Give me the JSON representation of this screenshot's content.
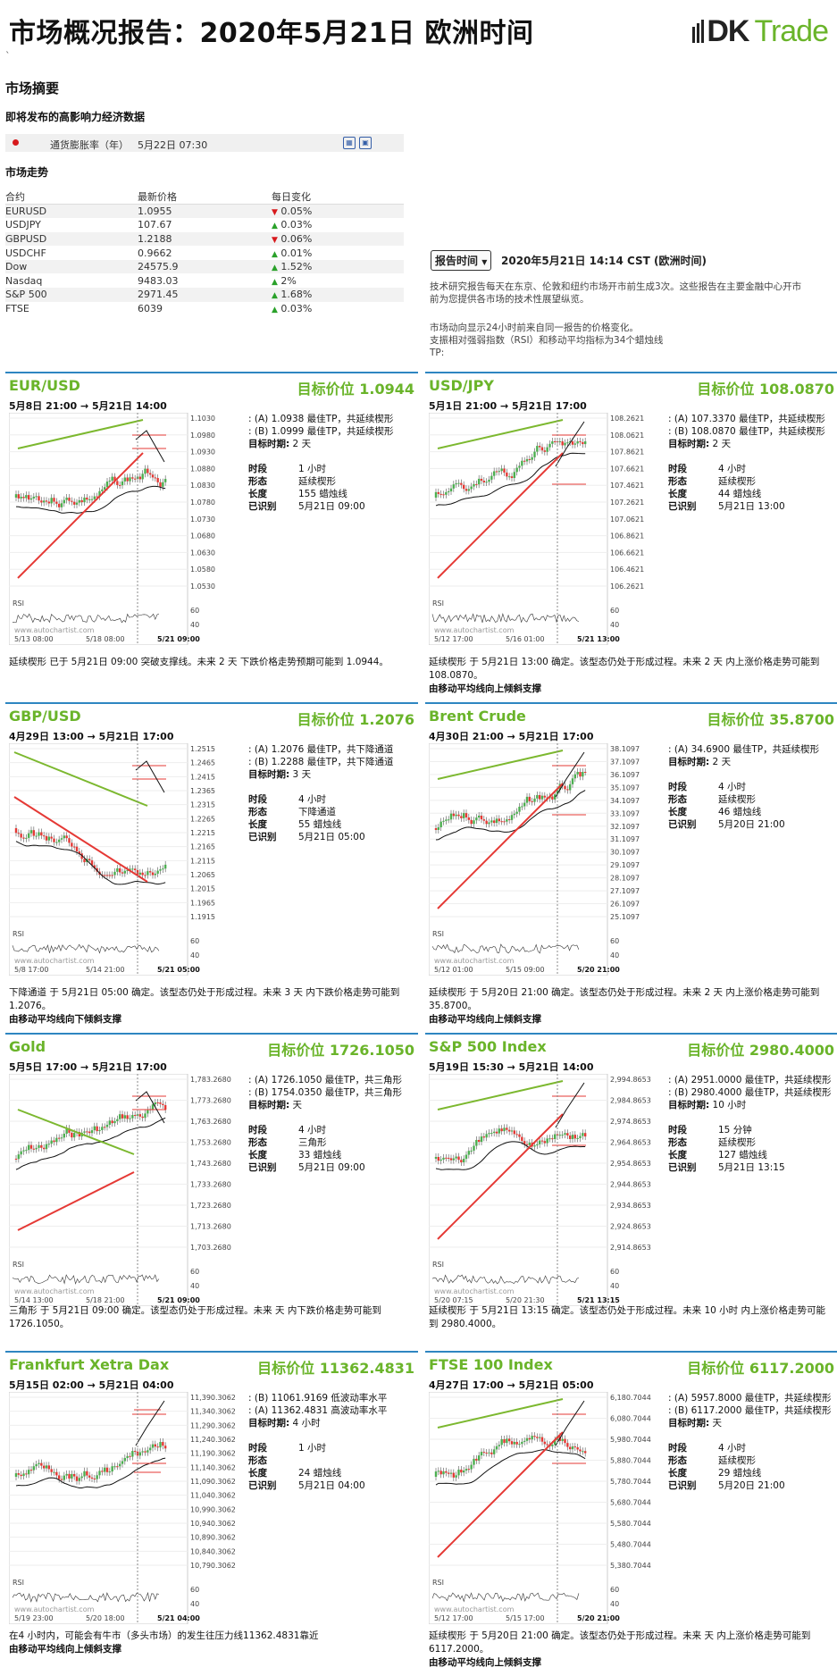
{
  "header": {
    "title": "市场概况报告：2020年5月21日 欧洲时间",
    "tick": "`",
    "logo_main": "DK",
    "logo_trade": "Trade"
  },
  "summary": {
    "title": "市场摘要",
    "eco_title": "即将发布的高影响力经济数据",
    "eco_name": "通货膨胀率（年）",
    "eco_time": "5月22日 07:30"
  },
  "market": {
    "title": "市场走势",
    "headers": [
      "合约",
      "最新价格",
      "每日变化"
    ],
    "rows": [
      {
        "name": "EURUSD",
        "price": "1.0955",
        "change": "0.05%",
        "dir": "down"
      },
      {
        "name": "USDJPY",
        "price": "107.67",
        "change": "0.03%",
        "dir": "up"
      },
      {
        "name": "GBPUSD",
        "price": "1.2188",
        "change": "0.06%",
        "dir": "down"
      },
      {
        "name": "USDCHF",
        "price": "0.9662",
        "change": "0.01%",
        "dir": "up"
      },
      {
        "name": "Dow",
        "price": "24575.9",
        "change": "1.52%",
        "dir": "up"
      },
      {
        "name": "Nasdaq",
        "price": "9483.03",
        "change": "2%",
        "dir": "up"
      },
      {
        "name": "S&P 500",
        "price": "2971.45",
        "change": "1.68%",
        "dir": "up"
      },
      {
        "name": "FTSE",
        "price": "6039",
        "change": "0.03%",
        "dir": "up"
      }
    ]
  },
  "report": {
    "select": "报告时间",
    "date": "2020年5月21日 14:14 CST (欧洲时间)",
    "p1a": "技术研究报告每天在东京、伦敦和纽约市场开市前生成3次。这些报告在主要金融中心开市",
    "p1b": "前为您提供各市场的技术性展望纵览。",
    "p2a": "市场动向显示24小时前来自同一报告的价格变化。",
    "p2b": "支振相对强弱指数（RSI）和移动平均指标为34个蜡烛线",
    "p2c": "TP:"
  },
  "labels": {
    "period": "时段",
    "pattern": "形态",
    "length": "长度",
    "identified": "已识别",
    "target_period": "目标时期:",
    "rsi": "RSI",
    "watermark": "www.autochartist.com"
  },
  "panels": [
    {
      "title": "EUR/USD",
      "target": "目标价位 1.0944",
      "range": "5月8日 21:00 → 5月21日 14:00",
      "lines": [
        "(A) 1.0938 最佳TP，共延续楔形",
        "(B) 1.0999 最佳TP，共延续楔形"
      ],
      "tperiod": "2 天",
      "period": "1 小时",
      "pattern": "延续楔形",
      "length": "155 蜡烛线",
      "identified": "5月21日 09:00",
      "desc": "延续楔形 已于 5月21日 09:00 突破支撑线。未来 2 天 下跌价格走势预期可能到 1.0944。",
      "bold": "",
      "yticks": [
        "1.1030",
        "1.0980",
        "1.0930",
        "1.0880",
        "1.0830",
        "1.0780",
        "1.0730",
        "1.0680",
        "1.0630",
        "1.0580",
        "1.0530"
      ],
      "xticks": [
        "5/13 08:00",
        "5/18 08:00",
        "5/21 09:00"
      ],
      "rsi_ticks": [
        "60",
        "40"
      ],
      "dir": "down",
      "shape": "wedge-up"
    },
    {
      "title": "USD/JPY",
      "target": "目标价位 108.0870",
      "range": "5月1日 21:00 → 5月21日 17:00",
      "lines": [
        "(A) 107.3370 最佳TP，共延续楔形",
        "(B) 108.0870 最佳TP，共延续楔形"
      ],
      "tperiod": "2 天",
      "period": "4 小时",
      "pattern": "延续楔形",
      "length": "44 蜡烛线",
      "identified": "5月21日 13:00",
      "desc": "延续楔形 于 5月21日 13:00 确定。该型态仍处于形成过程。未来 2 天 内上涨价格走势可能到 108.0870。",
      "bold": "由移动平均线向上倾斜支撑",
      "yticks": [
        "108.2621",
        "108.0621",
        "107.8621",
        "107.6621",
        "107.4621",
        "107.2621",
        "107.0621",
        "106.8621",
        "106.6621",
        "106.4621",
        "106.2621"
      ],
      "xticks": [
        "5/12 17:00",
        "5/16 01:00",
        "5/21 13:00"
      ],
      "rsi_ticks": [
        "60",
        "40"
      ],
      "dir": "up",
      "shape": "wedge-up"
    },
    {
      "title": "GBP/USD",
      "target": "目标价位 1.2076",
      "range": "4月29日 13:00 → 5月21日 17:00",
      "lines": [
        "(A) 1.2076 最佳TP，共下降通道",
        "(B) 1.2288 最佳TP，共下降通道"
      ],
      "tperiod": "3 天",
      "period": "4 小时",
      "pattern": "下降通道",
      "length": "55 蜡烛线",
      "identified": "5月21日 05:00",
      "desc": "下降通道 于 5月21日 05:00 确定。该型态仍处于形成过程。未来 3 天 内下跌价格走势可能到 1.2076。",
      "bold": "由移动平均线向下倾斜支撑",
      "yticks": [
        "1.2515",
        "1.2465",
        "1.2415",
        "1.2365",
        "1.2315",
        "1.2265",
        "1.2215",
        "1.2165",
        "1.2115",
        "1.2065",
        "1.2015",
        "1.1965",
        "1.1915"
      ],
      "xticks": [
        "5/8 17:00",
        "5/14 21:00",
        "5/21 05:00"
      ],
      "rsi_ticks": [
        "60",
        "40"
      ],
      "dir": "down",
      "shape": "channel-down"
    },
    {
      "title": "Brent Crude",
      "target": "目标价位 35.8700",
      "range": "4月30日 21:00 → 5月21日 17:00",
      "lines": [
        "(A) 34.6900 最佳TP，共延续楔形"
      ],
      "tperiod": "2 天",
      "period": "4 小时",
      "pattern": "延续楔形",
      "length": "46 蜡烛线",
      "identified": "5月20日 21:00",
      "desc": "延续楔形 于 5月20日 21:00 确定。该型态仍处于形成过程。未来 2 天 内上涨价格走势可能到 35.8700。",
      "bold": "由移动平均线向上倾斜支撑",
      "yticks": [
        "38.1097",
        "37.1097",
        "36.1097",
        "35.1097",
        "34.1097",
        "33.1097",
        "32.1097",
        "31.1097",
        "30.1097",
        "29.1097",
        "28.1097",
        "27.1097",
        "26.1097",
        "25.1097"
      ],
      "xticks": [
        "5/12 01:00",
        "5/15 09:00",
        "5/20 21:00"
      ],
      "rsi_ticks": [
        "60",
        "40"
      ],
      "dir": "up",
      "shape": "wedge-up"
    },
    {
      "title": "Gold",
      "target": "目标价位 1726.1050",
      "range": "5月5日 17:00 → 5月21日 17:00",
      "lines": [
        "(A) 1726.1050 最佳TP，共三角形",
        "(B) 1754.0350 最佳TP，共三角形"
      ],
      "tperiod": "天",
      "period": "4 小时",
      "pattern": "三角形",
      "length": "33 蜡烛线",
      "identified": "5月21日 09:00",
      "desc": "三角形 于 5月21日 09:00 确定。该型态仍处于形成过程。未来 天 内下跌价格走势可能到 1726.1050。",
      "bold": "",
      "yticks": [
        "1,783.2680",
        "1,773.2680",
        "1,763.2680",
        "1,753.2680",
        "1,743.2680",
        "1,733.2680",
        "1,723.2680",
        "1,713.2680",
        "1,703.2680"
      ],
      "xticks": [
        "5/14 13:00",
        "5/18 21:00",
        "5/21 09:00"
      ],
      "rsi_ticks": [
        "60",
        "40"
      ],
      "dir": "down",
      "shape": "triangle"
    },
    {
      "title": "S&P 500 Index",
      "target": "目标价位 2980.4000",
      "range": "5月19日 15:30 → 5月21日 14:00",
      "lines": [
        "(A) 2951.0000 最佳TP，共延续楔形",
        "(B) 2980.4000 最佳TP，共延续楔形"
      ],
      "tperiod": "10 小时",
      "period": "15 分钟",
      "pattern": "延续楔形",
      "length": "127 蜡烛线",
      "identified": "5月21日 13:15",
      "desc": "延续楔形 于 5月21日 13:15 确定。该型态仍处于形成过程。未来 10 小时 内上涨价格走势可能到 2980.4000。",
      "bold": "",
      "yticks": [
        "2,994.8653",
        "2,984.8653",
        "2,974.8653",
        "2,964.8653",
        "2,954.8653",
        "2,944.8653",
        "2,934.8653",
        "2,924.8653",
        "2,914.8653"
      ],
      "xticks": [
        "5/20 07:15",
        "5/20 21:30",
        "5/21 13:15"
      ],
      "rsi_ticks": [
        "60",
        "40"
      ],
      "dir": "up",
      "shape": "wedge-up"
    },
    {
      "title": "Frankfurt Xetra Dax",
      "target": "目标价位 11362.4831",
      "range": "5月15日 02:00 → 5月21日 04:00",
      "lines": [
        "(B) 11061.9169 低波动率水平",
        "(A) 11362.4831 高波动率水平"
      ],
      "tperiod": "4 小时",
      "period": "1 小时",
      "pattern": "",
      "length": "24 蜡烛线",
      "identified": "5月21日 04:00",
      "desc": "在4 小时内，可能会有牛市（多头市场）的发生往压力线11362.4831靠近",
      "bold": "由移动平均线向上倾斜支撑",
      "yticks": [
        "11,390.3062",
        "11,340.3062",
        "11,290.3062",
        "11,240.3062",
        "11,190.3062",
        "11,140.3062",
        "11,090.3062",
        "11,040.3062",
        "10,990.3062",
        "10,940.3062",
        "10,890.3062",
        "10,840.3062",
        "10,790.3062"
      ],
      "xticks": [
        "5/19 23:00",
        "5/20 18:00",
        "5/21 04:00"
      ],
      "rsi_ticks": [
        "60",
        "40"
      ],
      "dir": "up",
      "shape": "levels"
    },
    {
      "title": "FTSE 100 Index",
      "target": "目标价位 6117.2000",
      "range": "4月27日 17:00 → 5月21日 05:00",
      "lines": [
        "(A) 5957.8000 最佳TP，共延续楔形",
        "(B) 6117.2000 最佳TP，共延续楔形"
      ],
      "tperiod": "天",
      "period": "4 小时",
      "pattern": "延续楔形",
      "length": "29 蜡烛线",
      "identified": "5月20日 21:00",
      "desc": "延续楔形 于 5月20日 21:00 确定。该型态仍处于形成过程。未来 天 内上涨价格走势可能到 6117.2000。",
      "bold": "由移动平均线向上倾斜支撑",
      "yticks": [
        "6,180.7044",
        "6,080.7044",
        "5,980.7044",
        "5,880.7044",
        "5,780.7044",
        "5,680.7044",
        "5,580.7044",
        "5,480.7044",
        "5,380.7044"
      ],
      "xticks": [
        "5/12 17:00",
        "5/15 17:00",
        "5/20 21:00"
      ],
      "rsi_ticks": [
        "60",
        "40"
      ],
      "dir": "up",
      "shape": "wedge-up"
    }
  ]
}
